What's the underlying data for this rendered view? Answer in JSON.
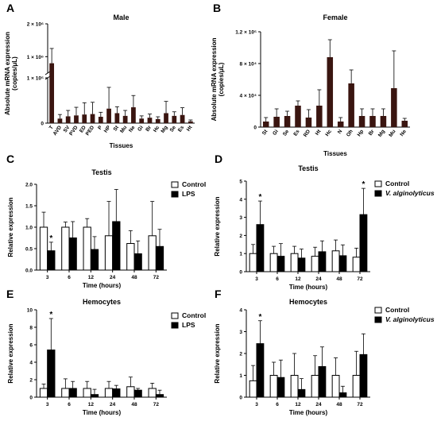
{
  "colors": {
    "dark_bar": "#3a1510",
    "filled": "#000000",
    "open": "#ffffff"
  },
  "chart_data": [
    {
      "panel": "A",
      "type": "bar",
      "title": "Male",
      "xlabel": "Tissues",
      "ylabel": "Absolute mRNA expression (copies/μL)",
      "categories": [
        "T",
        "AVD",
        "SV",
        "PVD",
        "ED",
        "PED",
        "P",
        "HP",
        "St",
        "Mu",
        "Ne",
        "Gi",
        "Br",
        "Hc",
        "Mg",
        "Se",
        "Es",
        "Ht"
      ],
      "values": [
        800000,
        10000,
        15000,
        17000,
        19000,
        20000,
        14000,
        32000,
        22000,
        16000,
        35000,
        10000,
        12000,
        9000,
        22000,
        16000,
        18000,
        4000
      ],
      "errors": [
        450000,
        9000,
        13000,
        18000,
        26000,
        26000,
        10000,
        47000,
        14000,
        12000,
        26000,
        6000,
        8000,
        5000,
        26000,
        9000,
        16000,
        3000
      ],
      "y_axis_lower": {
        "range": [
          0,
          100000
        ],
        "tick_labels": [
          "0",
          "1 × 10⁵"
        ]
      },
      "y_axis_upper": {
        "range": [
          500000,
          2000000
        ],
        "tick_labels": [
          "1 × 10⁶",
          "2 × 10⁶"
        ]
      }
    },
    {
      "panel": "B",
      "type": "bar",
      "title": "Female",
      "xlabel": "Tissues",
      "ylabel": "Absolute mRNA expression (copies/μL)",
      "categories": [
        "St",
        "Gi",
        "Se",
        "Es",
        "RD",
        "Ht",
        "Hc",
        "N",
        "Oh",
        "Hp",
        "Br",
        "Mg",
        "Mu",
        "Ne"
      ],
      "values": [
        7000,
        13000,
        14000,
        27000,
        12000,
        27000,
        88000,
        7000,
        55000,
        14000,
        14000,
        14000,
        49000,
        8000
      ],
      "errors": [
        5000,
        10000,
        6000,
        6000,
        10000,
        20000,
        22000,
        5000,
        17000,
        9000,
        9000,
        9000,
        47000,
        3000
      ],
      "ylim": [
        0,
        120000
      ],
      "y_tick_labels": [
        "0",
        "4 × 10⁴",
        "8 × 10⁴",
        "1.2 × 10⁵"
      ]
    },
    {
      "panel": "C",
      "type": "bar",
      "title": "Testis",
      "xlabel": "Time (hours)",
      "ylabel": "Relative expression",
      "categories": [
        "3",
        "6",
        "12",
        "24",
        "48",
        "72"
      ],
      "series": [
        {
          "name": "Control",
          "values": [
            1.0,
            1.0,
            1.0,
            0.8,
            0.62,
            0.8
          ],
          "errors": [
            0.35,
            0.12,
            0.2,
            0.8,
            0.3,
            0.8
          ]
        },
        {
          "name": "LPS",
          "values": [
            0.45,
            0.75,
            0.48,
            1.13,
            0.38,
            0.55
          ],
          "errors": [
            0.2,
            0.38,
            0.3,
            0.75,
            0.3,
            0.4
          ]
        }
      ],
      "significance": [
        {
          "category": "3",
          "series": "LPS",
          "mark": "*"
        }
      ],
      "ylim": [
        0,
        2.0
      ],
      "y_tick_labels": [
        "0.0",
        "0.5",
        "1.0",
        "1.5",
        "2.0"
      ]
    },
    {
      "panel": "D",
      "type": "bar",
      "title": "Testis",
      "xlabel": "Time (hours)",
      "ylabel": "Relative expression",
      "categories": [
        "3",
        "6",
        "12",
        "24",
        "48",
        "72"
      ],
      "series": [
        {
          "name": "Control",
          "values": [
            1.0,
            1.0,
            1.0,
            0.85,
            1.15,
            0.8
          ],
          "errors": [
            0.5,
            0.4,
            0.4,
            0.5,
            0.6,
            0.5
          ]
        },
        {
          "name": "V. alginolyticus",
          "values": [
            2.6,
            0.85,
            0.75,
            1.1,
            0.88,
            3.15
          ],
          "errors": [
            1.3,
            0.7,
            0.5,
            0.6,
            0.6,
            1.45
          ]
        }
      ],
      "significance": [
        {
          "category": "3",
          "series": "V. alginolyticus",
          "mark": "*"
        },
        {
          "category": "72",
          "series": "V. alginolyticus",
          "mark": "*"
        }
      ],
      "ylim": [
        0,
        5
      ],
      "y_tick_labels": [
        "0",
        "1",
        "2",
        "3",
        "4",
        "5"
      ]
    },
    {
      "panel": "E",
      "type": "bar",
      "title": "Hemocytes",
      "xlabel": "Time (hours)",
      "ylabel": "Relative expression",
      "categories": [
        "3",
        "6",
        "12",
        "24",
        "48",
        "72"
      ],
      "series": [
        {
          "name": "Control",
          "values": [
            1.0,
            1.0,
            1.0,
            1.0,
            1.2,
            1.0
          ],
          "errors": [
            0.5,
            1.1,
            0.8,
            0.8,
            1.1,
            0.6
          ]
        },
        {
          "name": "LPS",
          "values": [
            5.4,
            1.0,
            0.3,
            0.95,
            0.8,
            0.3
          ],
          "errors": [
            3.6,
            0.8,
            0.6,
            0.4,
            0.2,
            0.5
          ]
        }
      ],
      "significance": [
        {
          "category": "3",
          "series": "LPS",
          "mark": "*"
        }
      ],
      "ylim": [
        0,
        10
      ],
      "y_tick_labels": [
        "0",
        "2",
        "4",
        "6",
        "8",
        "10"
      ]
    },
    {
      "panel": "F",
      "type": "bar",
      "title": "Hemocytes",
      "xlabel": "Time (hours)",
      "ylabel": "Relative expression",
      "categories": [
        "3",
        "6",
        "12",
        "24",
        "48",
        "72"
      ],
      "series": [
        {
          "name": "Control",
          "values": [
            0.75,
            1.0,
            1.0,
            1.0,
            1.0,
            1.0
          ],
          "errors": [
            0.7,
            0.6,
            1.0,
            0.9,
            0.8,
            1.1
          ]
        },
        {
          "name": "V. alginolyticus",
          "values": [
            2.45,
            0.9,
            0.35,
            1.4,
            0.2,
            1.95
          ],
          "errors": [
            1.05,
            0.8,
            0.5,
            0.9,
            0.3,
            0.95
          ]
        }
      ],
      "significance": [
        {
          "category": "3",
          "series": "V. alginolyticus",
          "mark": "*"
        }
      ],
      "ylim": [
        0,
        4
      ],
      "y_tick_labels": [
        "0",
        "1",
        "2",
        "3",
        "4"
      ]
    }
  ]
}
